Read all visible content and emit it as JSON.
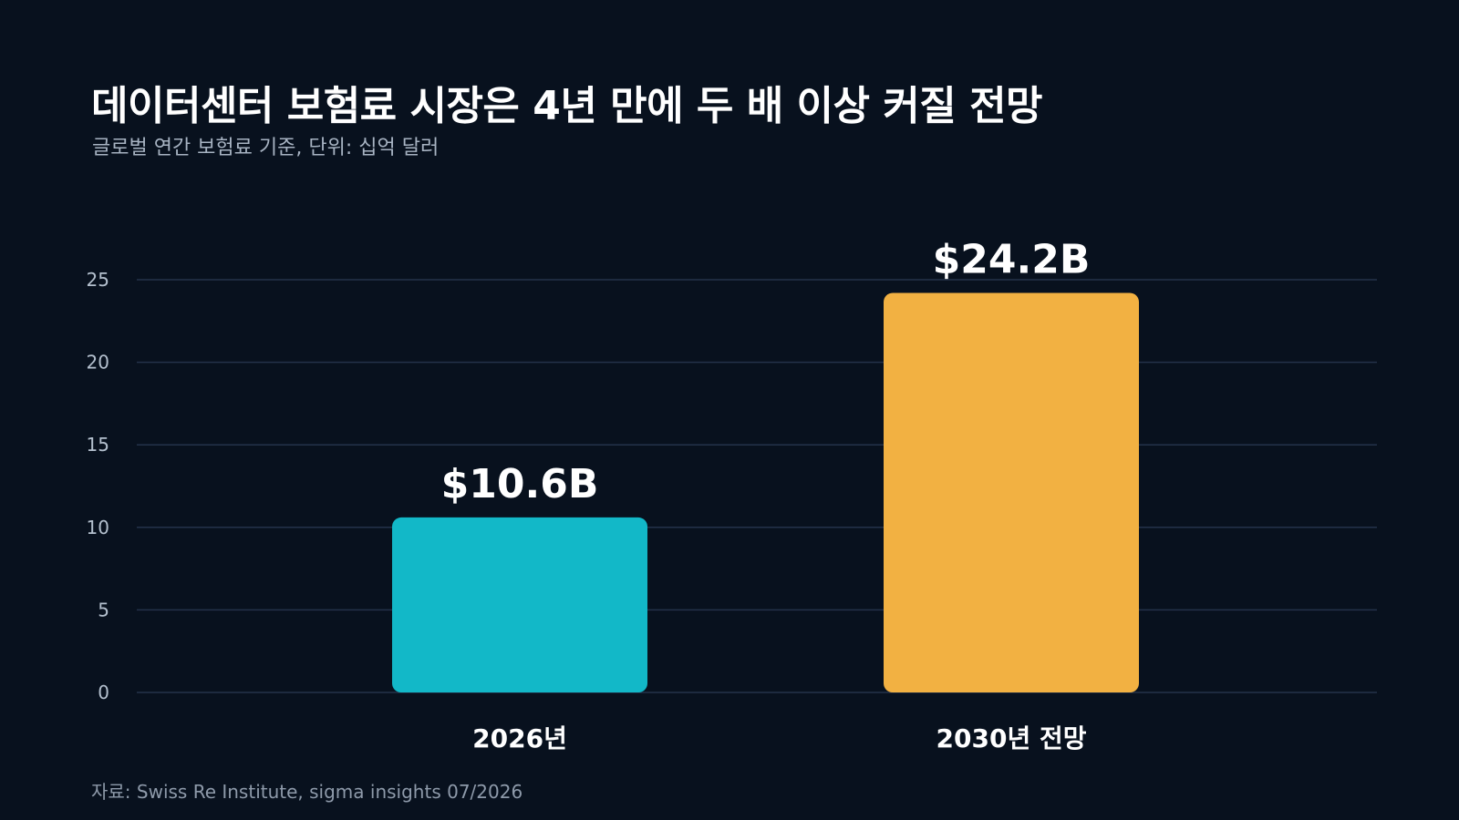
{
  "title": "데이터센터 보험료 시장은 4년 만에 두 배 이상 커질 전망",
  "subtitle": "글로벌 연간 보험료 기준, 단위: 십억 달러",
  "source": "자료: Swiss Re Institute, sigma insights 07/2026",
  "colors": {
    "background": "#08111e",
    "gridline": "#24324a",
    "bar_2026": "#12b8c8",
    "bar_2030": "#f2b142"
  },
  "chart_data": {
    "type": "bar",
    "categories": [
      "2026년",
      "2030년 전망"
    ],
    "values": [
      10.6,
      24.2
    ],
    "value_labels": [
      "$10.6B",
      "$24.2B"
    ],
    "bar_colors": [
      "#12b8c8",
      "#f2b142"
    ],
    "ylim": [
      0,
      25
    ],
    "yticks": [
      0,
      5,
      10,
      15,
      20,
      25
    ],
    "grid": true,
    "title": "데이터센터 보험료 시장은 4년 만에 두 배 이상 커질 전망",
    "xlabel": "",
    "ylabel": ""
  }
}
